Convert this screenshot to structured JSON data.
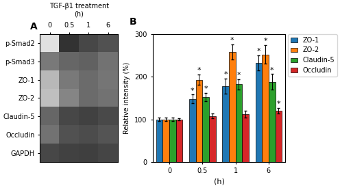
{
  "chart_data": [
    {
      "type": "heatmap",
      "title": "TGF-β1 treatment\n(h)",
      "categories": [
        "0",
        "0.5",
        "1",
        "6"
      ],
      "rows": [
        "p-Smad2",
        "p-Smad3",
        "ZO-1",
        "ZO-2",
        "Claudin-5",
        "Occludin",
        "GAPDH"
      ],
      "cells": [
        [
          0.12,
          0.8,
          0.72,
          0.68
        ],
        [
          0.52,
          0.6,
          0.62,
          0.55
        ],
        [
          0.28,
          0.52,
          0.58,
          0.54
        ],
        [
          0.25,
          0.48,
          0.58,
          0.55
        ],
        [
          0.6,
          0.72,
          0.74,
          0.71
        ],
        [
          0.55,
          0.68,
          0.7,
          0.67
        ],
        [
          0.72,
          0.74,
          0.75,
          0.73
        ]
      ],
      "clim": [
        0,
        1
      ],
      "annotations": [
        {
          "text": "A"
        }
      ]
    },
    {
      "type": "bar",
      "xlabel": "(h)",
      "ylabel": "Relative intensity (%)",
      "categories": [
        "0",
        "0.5",
        "1",
        "6"
      ],
      "ylim": [
        0,
        300
      ],
      "yticks": [
        0,
        100,
        200,
        300
      ],
      "legend": "right",
      "series": [
        {
          "name": "ZO-1",
          "values": [
            100,
            148,
            178,
            232
          ],
          "errors": [
            4,
            10,
            18,
            18
          ],
          "significance": [
            null,
            "*",
            "*",
            "*"
          ]
        },
        {
          "name": "ZO-2",
          "values": [
            100,
            193,
            258,
            252
          ],
          "errors": [
            4,
            12,
            18,
            22
          ],
          "significance": [
            null,
            "*",
            "*",
            "*"
          ]
        },
        {
          "name": "Claudin-5",
          "values": [
            100,
            152,
            182,
            188
          ],
          "errors": [
            4,
            10,
            12,
            18
          ],
          "significance": [
            null,
            "*",
            "*",
            "*"
          ]
        },
        {
          "name": "Occludin",
          "values": [
            100,
            108,
            112,
            120
          ],
          "errors": [
            3,
            6,
            8,
            7
          ],
          "significance": [
            null,
            null,
            null,
            "*"
          ]
        }
      ],
      "annotations": [
        {
          "text": "B"
        }
      ]
    }
  ]
}
